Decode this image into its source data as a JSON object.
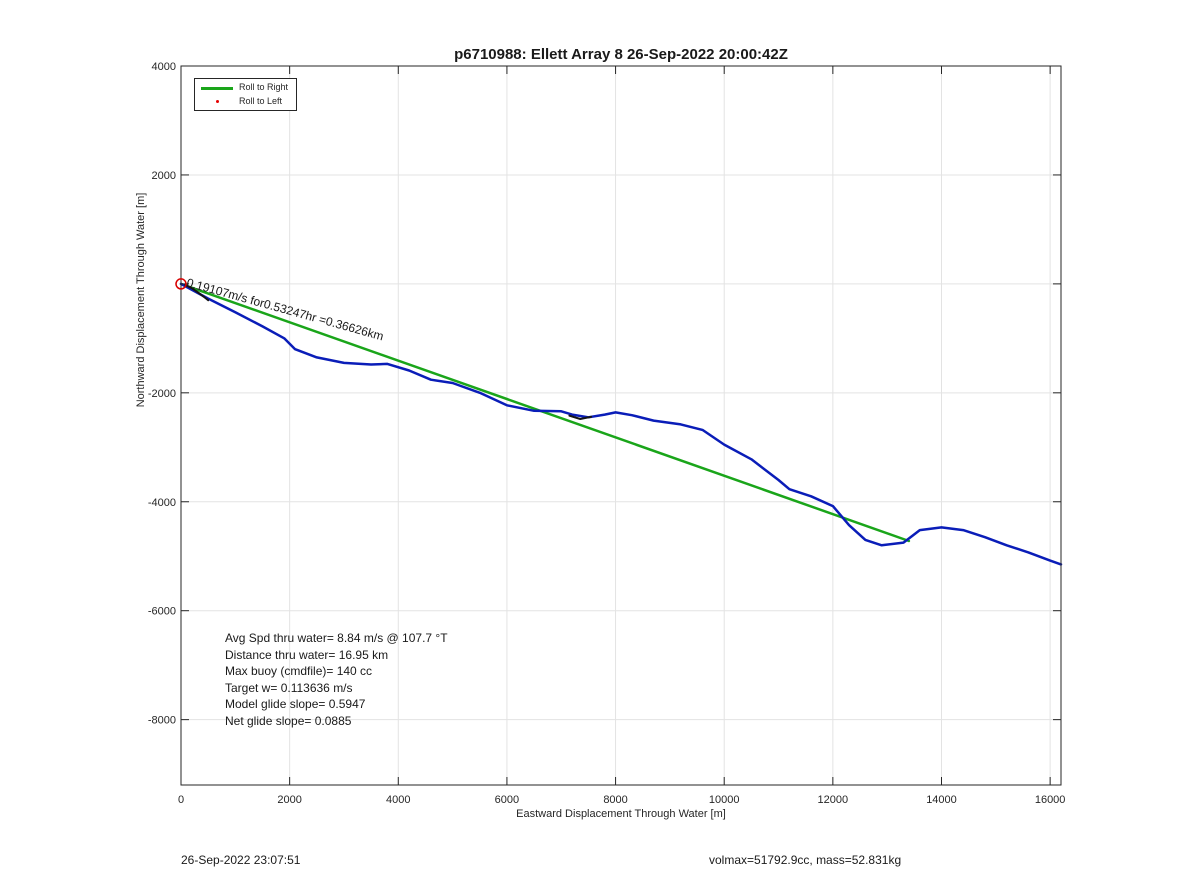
{
  "chart_data": {
    "type": "line",
    "title": "p6710988: Ellett Array 8 26-Sep-2022 20:00:42Z",
    "xlabel": "Eastward Displacement Through Water [m]",
    "ylabel": "Northward Displacement Through Water [m]",
    "xlim": [
      0,
      16200
    ],
    "ylim": [
      -9200,
      4000
    ],
    "xticks": [
      0,
      2000,
      4000,
      6000,
      8000,
      10000,
      12000,
      14000,
      16000
    ],
    "yticks": [
      -8000,
      -6000,
      -4000,
      -2000,
      0,
      2000,
      4000
    ],
    "ytick_labels": [
      "-8000",
      "-6000",
      "-4000",
      "-2000",
      "",
      "2000",
      "4000"
    ],
    "grid": true,
    "legend_position": "top-left",
    "legend": [
      "Roll to Right",
      "Roll to Left"
    ],
    "annotation": "0.19107m/s for0.53247hr =0.36626km",
    "series": [
      {
        "name": "Roll to Right",
        "color": "#1aa51a",
        "x": [
          0,
          13400
        ],
        "y": [
          0,
          -4720
        ]
      },
      {
        "name": "track",
        "color": "#0a1db8",
        "x": [
          0,
          500,
          1000,
          1500,
          1900,
          2100,
          2500,
          3000,
          3500,
          3800,
          4200,
          4600,
          5000,
          5500,
          6000,
          6500,
          7000,
          7200,
          7500,
          7800,
          8000,
          8300,
          8700,
          9200,
          9600,
          10000,
          10500,
          11000,
          11200,
          11600,
          12000,
          12300,
          12600,
          12900,
          13300,
          13600,
          14000,
          14400,
          14800,
          15200,
          15600,
          16000,
          16200
        ],
        "y": [
          0,
          -270,
          -520,
          -780,
          -1000,
          -1200,
          -1350,
          -1450,
          -1480,
          -1470,
          -1590,
          -1760,
          -1820,
          -2000,
          -2230,
          -2330,
          -2340,
          -2400,
          -2450,
          -2400,
          -2360,
          -2410,
          -2510,
          -2580,
          -2680,
          -2950,
          -3220,
          -3600,
          -3770,
          -3900,
          -4080,
          -4430,
          -4700,
          -4800,
          -4750,
          -4520,
          -4470,
          -4520,
          -4650,
          -4800,
          -4930,
          -5080,
          -5150
        ]
      },
      {
        "name": "surface segment",
        "color": "#141414",
        "x": [
          7150,
          7350,
          7550
        ],
        "y": [
          -2420,
          -2480,
          -2440
        ]
      },
      {
        "name": "dive start",
        "color": "#141414",
        "x": [
          80,
          200,
          330,
          450,
          500
        ],
        "y": [
          -20,
          -80,
          -170,
          -260,
          -300
        ]
      }
    ],
    "markers": [
      {
        "label": "start",
        "color": "#d80000",
        "x": 0,
        "y": 0
      }
    ]
  },
  "stats": {
    "line1": "Avg Spd thru water=  8.84 m/s @ 107.7 °T",
    "line2": "Distance thru water= 16.95 km",
    "line3": "Max buoy (cmdfile)= 140 cc",
    "line4": "Target w= 0.113636 m/s",
    "line5": "Model glide slope= 0.5947",
    "line6": "Net glide slope= 0.0885"
  },
  "footer": {
    "left": "26-Sep-2022 23:07:51",
    "right": "volmax=51792.9cc, mass=52.831kg"
  }
}
